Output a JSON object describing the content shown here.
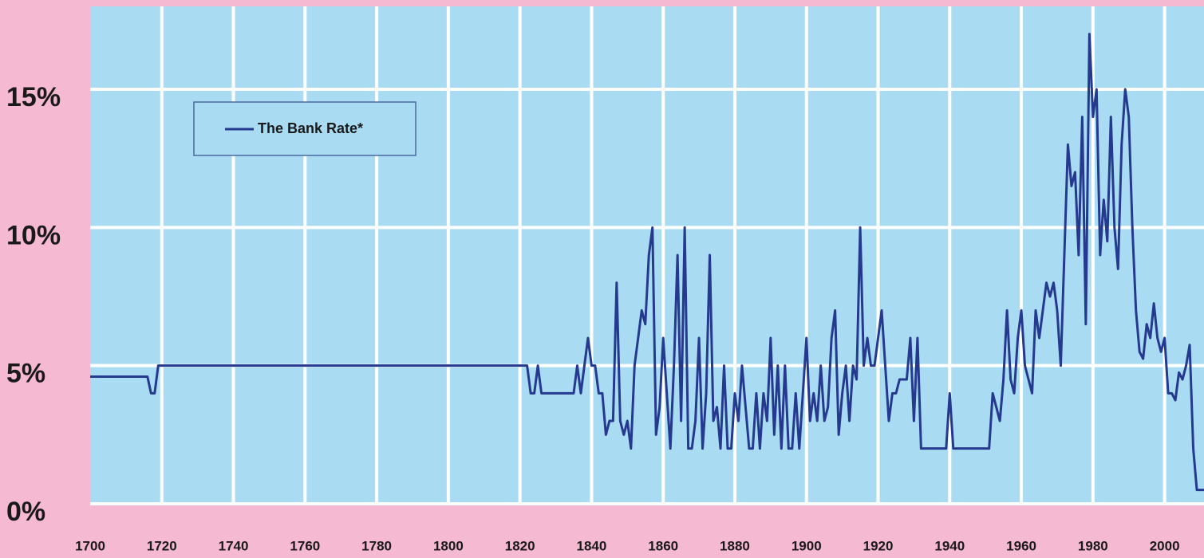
{
  "chart_data": {
    "type": "line",
    "x": [
      1700,
      1716,
      1717,
      1718,
      1719,
      1822,
      1823,
      1824,
      1825,
      1826,
      1835,
      1836,
      1837,
      1839,
      1840,
      1841,
      1842,
      1843,
      1844,
      1845,
      1846,
      1847,
      1848,
      1849,
      1850,
      1851,
      1852,
      1853,
      1854,
      1855,
      1856,
      1857,
      1858,
      1859,
      1860,
      1861,
      1862,
      1863,
      1864,
      1865,
      1866,
      1867,
      1868,
      1869,
      1870,
      1871,
      1872,
      1873,
      1874,
      1875,
      1876,
      1877,
      1878,
      1879,
      1880,
      1881,
      1882,
      1883,
      1884,
      1885,
      1886,
      1887,
      1888,
      1889,
      1890,
      1891,
      1892,
      1893,
      1894,
      1895,
      1896,
      1897,
      1898,
      1899,
      1900,
      1901,
      1902,
      1903,
      1904,
      1905,
      1906,
      1907,
      1908,
      1909,
      1910,
      1911,
      1912,
      1913,
      1914,
      1915,
      1916,
      1917,
      1918,
      1919,
      1920,
      1921,
      1922,
      1923,
      1924,
      1925,
      1926,
      1927,
      1928,
      1929,
      1930,
      1931,
      1932,
      1939,
      1940,
      1941,
      1951,
      1952,
      1953,
      1954,
      1955,
      1956,
      1957,
      1958,
      1959,
      1960,
      1961,
      1962,
      1963,
      1964,
      1965,
      1966,
      1967,
      1968,
      1969,
      1970,
      1971,
      1972,
      1973,
      1974,
      1975,
      1976,
      1977,
      1978,
      1979,
      1980,
      1981,
      1982,
      1983,
      1984,
      1985,
      1986,
      1987,
      1988,
      1989,
      1990,
      1991,
      1992,
      1993,
      1994,
      1995,
      1996,
      1997,
      1998,
      1999,
      2000,
      2001,
      2002,
      2003,
      2004,
      2005,
      2006,
      2007,
      2008,
      2009,
      2011
    ],
    "series": [
      {
        "name": "The Bank Rate*",
        "color": "#25398f",
        "values": [
          4.6,
          4.6,
          4,
          4,
          5,
          5,
          4,
          4,
          5,
          4,
          4,
          5,
          4,
          6,
          5,
          5,
          4,
          4,
          2.5,
          3,
          3,
          8,
          3,
          2.5,
          3,
          2,
          5,
          6,
          7,
          6.5,
          9,
          10,
          2.5,
          3.5,
          6,
          4,
          2,
          5,
          9,
          3,
          10,
          2,
          2,
          3,
          6,
          2,
          4,
          9,
          3,
          3.5,
          2,
          5,
          2,
          2,
          4,
          3,
          5,
          3.5,
          2,
          2,
          4,
          2,
          4,
          3,
          6,
          2.5,
          5,
          2,
          5,
          2,
          2,
          4,
          2,
          4,
          6,
          3,
          4,
          3,
          5,
          3,
          3.5,
          6,
          7,
          2.5,
          4,
          5,
          3,
          5,
          4.5,
          10,
          5,
          6,
          5,
          5,
          6,
          7,
          5,
          3,
          4,
          4,
          4.5,
          4.5,
          4.5,
          6,
          3,
          6,
          2,
          2,
          4,
          2,
          2,
          4,
          3.5,
          3,
          4.5,
          7,
          4.5,
          4,
          6,
          7,
          5,
          4.5,
          4,
          7,
          6,
          7,
          8,
          7.5,
          8,
          7,
          5,
          9,
          13,
          11.5,
          12,
          9,
          14,
          6.5,
          17,
          14,
          15,
          9,
          11,
          9.5,
          14,
          10,
          8.5,
          13,
          15,
          14,
          10,
          7,
          5.5,
          5.25,
          6.5,
          6,
          7.25,
          6,
          5.5,
          6,
          4,
          4,
          3.75,
          4.75,
          4.5,
          5,
          5.75,
          2,
          0.5,
          0.5
        ]
      }
    ],
    "xlim": [
      1700,
      2011
    ],
    "ylim": [
      0,
      18
    ],
    "xticks": [
      1700,
      1720,
      1740,
      1760,
      1780,
      1800,
      1820,
      1840,
      1860,
      1880,
      1900,
      1920,
      1940,
      1960,
      1980,
      2000
    ],
    "yticks": [
      {
        "value": 0,
        "label": "0%"
      },
      {
        "value": 5,
        "label": "5%"
      },
      {
        "value": 10,
        "label": "10%"
      },
      {
        "value": 15,
        "label": "15%"
      }
    ],
    "grid": true,
    "legend": "top-left"
  }
}
